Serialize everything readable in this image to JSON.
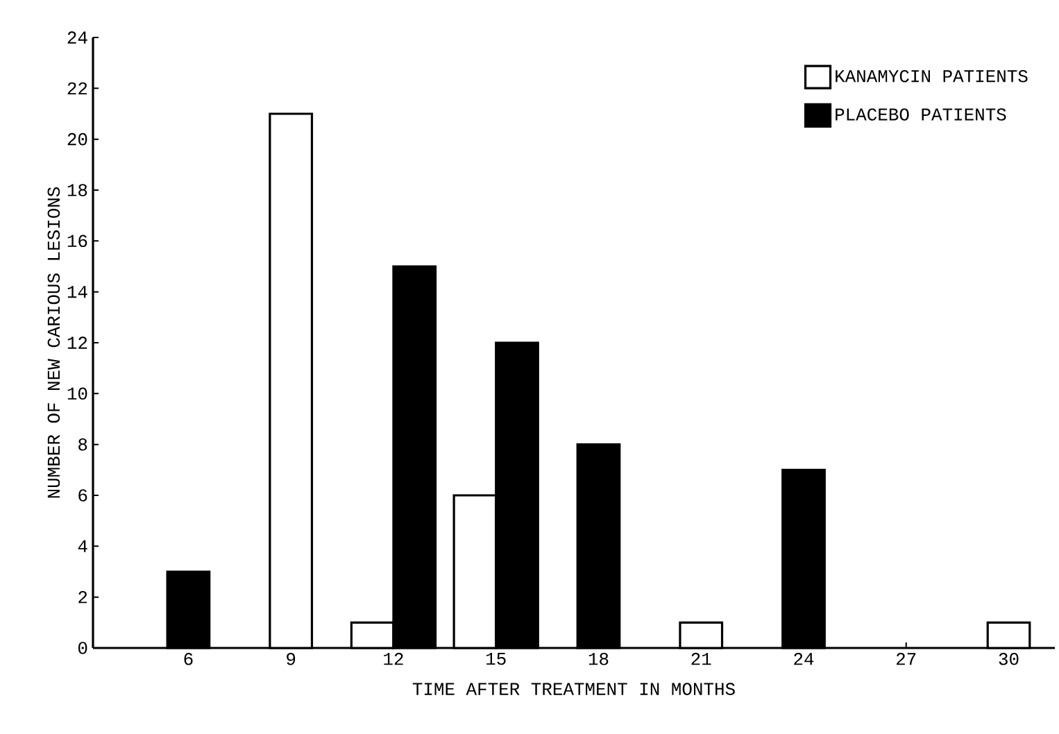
{
  "chart_data": {
    "type": "bar",
    "xlabel": "TIME AFTER TREATMENT IN MONTHS",
    "ylabel": "NUMBER OF NEW CARIOUS LESIONS",
    "categories": [
      "6",
      "9",
      "12",
      "15",
      "18",
      "21",
      "24",
      "27",
      "30"
    ],
    "series": [
      {
        "name": "KANAMYCIN PATIENTS",
        "color": "#ffffff",
        "values": [
          null,
          21,
          1,
          6,
          null,
          1,
          null,
          null,
          1
        ]
      },
      {
        "name": "PLACEBO PATIENTS",
        "color": "#000000",
        "values": [
          3,
          null,
          15,
          12,
          8,
          null,
          7,
          null,
          null
        ]
      }
    ],
    "ylim": [
      0,
      24
    ],
    "yticks": [
      0,
      2,
      4,
      6,
      8,
      10,
      12,
      14,
      16,
      18,
      20,
      22,
      24
    ],
    "legend": "top right",
    "grid": false
  }
}
